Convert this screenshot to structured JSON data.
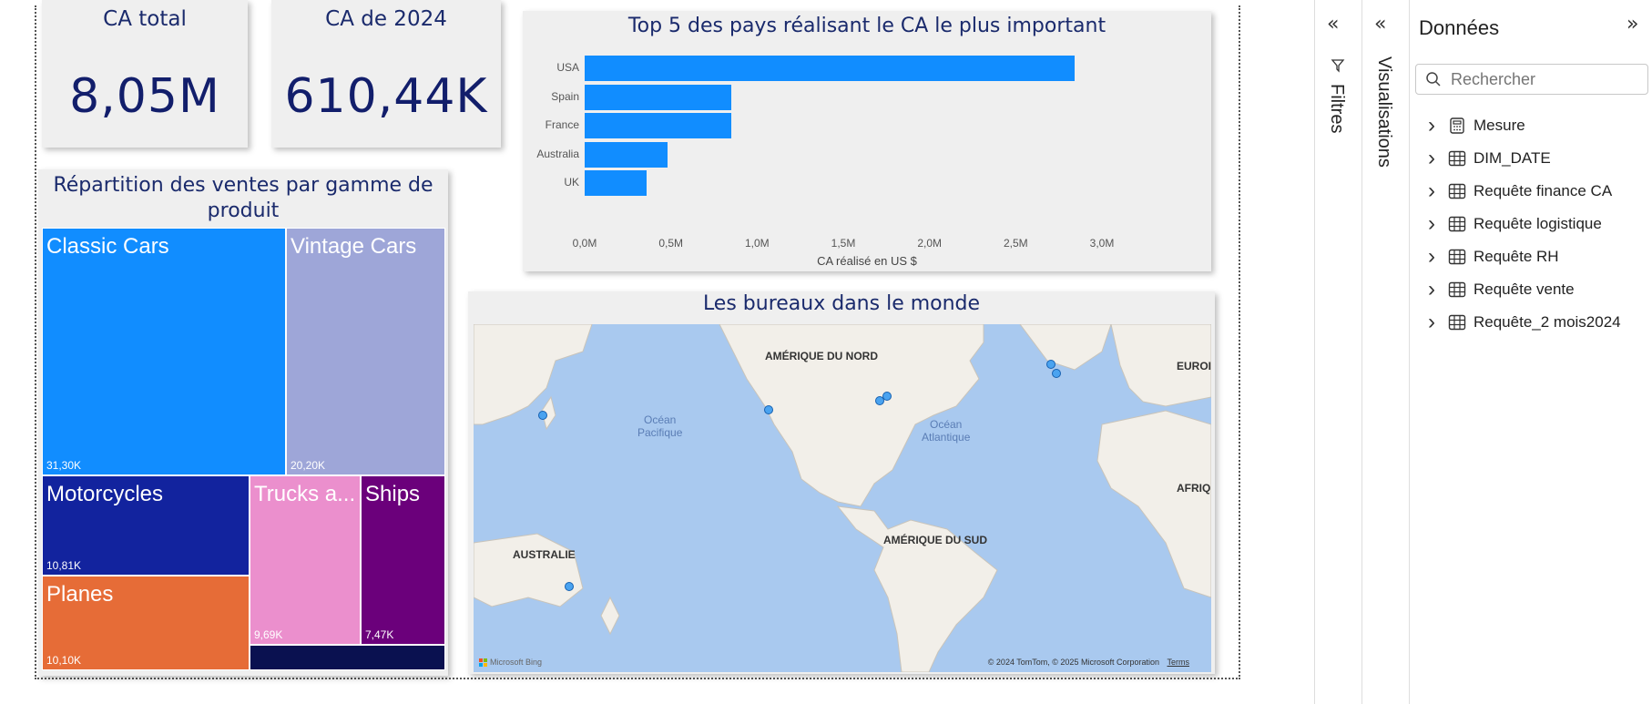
{
  "kpis": [
    {
      "title": "CA total",
      "value": "8,05M"
    },
    {
      "title": "CA de 2024",
      "value": "610,44K"
    }
  ],
  "bar_chart": {
    "title": "Top 5 des pays réalisant le CA le plus important",
    "xlabel": "CA réalisé en US $",
    "xticks": [
      "0,0M",
      "0,5M",
      "1,0M",
      "1,5M",
      "2,0M",
      "2,5M",
      "3,0M"
    ]
  },
  "treemap": {
    "title": "Répartition des ventes par gamme de produit",
    "tiles": [
      {
        "name": "Classic Cars",
        "value": "31,30K",
        "color": "#118dff"
      },
      {
        "name": "Vintage Cars",
        "value": "20,20K",
        "color": "#9ea6d8"
      },
      {
        "name": "Motorcycles",
        "value": "10,81K",
        "color": "#12239e"
      },
      {
        "name": "Trucks a...",
        "value": "9,69K",
        "color": "#eb8fcd"
      },
      {
        "name": "Ships",
        "value": "7,47K",
        "color": "#6b007b"
      },
      {
        "name": "Planes",
        "value": "10,10K",
        "color": "#e66c37"
      },
      {
        "name": "",
        "value": "",
        "color": "#0a1150"
      }
    ]
  },
  "map": {
    "title": "Les bureaux dans le monde",
    "labels": {
      "north_america": "AMÉRIQUE DU NORD",
      "south_america": "AMÉRIQUE DU SUD",
      "australia": "AUSTRALIE",
      "europe": "EUROI",
      "africa": "AFRIQ",
      "pacific": "Océan\nPacifique",
      "atlantic": "Océan\nAtlantique"
    },
    "logo": "Microsoft Bing",
    "copyright": "© 2024 TomTom, © 2025 Microsoft Corporation",
    "terms": "Terms"
  },
  "chart_data": {
    "type": "bar",
    "orientation": "horizontal",
    "title": "Top 5 des pays réalisant le CA le plus important",
    "xlabel": "CA réalisé en US $",
    "ylabel": "",
    "categories": [
      "USA",
      "Spain",
      "France",
      "Australia",
      "UK"
    ],
    "values": [
      2.84,
      0.85,
      0.85,
      0.48,
      0.36
    ],
    "unit": "M",
    "xlim": [
      0,
      3.0
    ],
    "color": "#118dff",
    "grid": false
  },
  "side_panels": {
    "filters_label": "Filtres",
    "visualizations_label": "Visualisations",
    "data_title": "Données",
    "search_placeholder": "Rechercher",
    "fields": [
      {
        "name": "Mesure",
        "icon": "calculator-icon"
      },
      {
        "name": "DIM_DATE",
        "icon": "table-icon"
      },
      {
        "name": "Requête finance CA",
        "icon": "table-icon"
      },
      {
        "name": "Requête logistique",
        "icon": "table-icon"
      },
      {
        "name": "Requête RH",
        "icon": "table-icon"
      },
      {
        "name": "Requête vente",
        "icon": "table-icon"
      },
      {
        "name": "Requête_2 mois2024",
        "icon": "table-icon"
      }
    ]
  }
}
